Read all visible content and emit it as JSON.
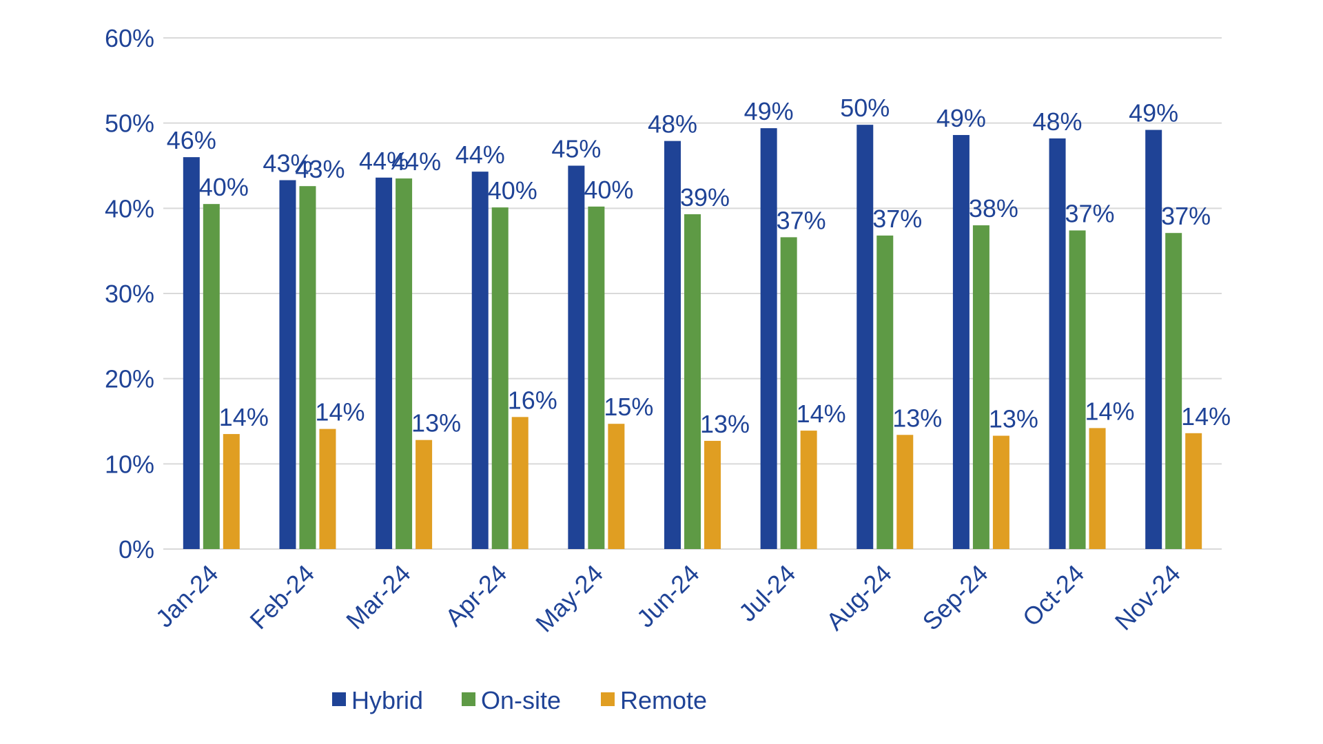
{
  "chart_data": {
    "type": "bar",
    "title": "",
    "xlabel": "",
    "ylabel": "",
    "categories": [
      "Jan-24",
      "Feb-24",
      "Mar-24",
      "Apr-24",
      "May-24",
      "Jun-24",
      "Jul-24",
      "Aug-24",
      "Sep-24",
      "Oct-24",
      "Nov-24"
    ],
    "series": [
      {
        "name": "Hybrid",
        "color": "#1F4396",
        "values": [
          46,
          43.3,
          43.6,
          44.3,
          45,
          47.9,
          49.4,
          49.8,
          48.6,
          48.2,
          49.2
        ],
        "labels": [
          "46%",
          "43%",
          "44%",
          "44%",
          "45%",
          "48%",
          "49%",
          "50%",
          "49%",
          "48%",
          "49%"
        ]
      },
      {
        "name": "On-site",
        "color": "#5E9A45",
        "values": [
          40.5,
          42.6,
          43.5,
          40.1,
          40.2,
          39.3,
          36.6,
          36.8,
          38,
          37.4,
          37.1
        ],
        "labels": [
          "40%",
          "43%",
          "44%",
          "40%",
          "40%",
          "39%",
          "37%",
          "37%",
          "38%",
          "37%",
          "37%"
        ]
      },
      {
        "name": "Remote",
        "color": "#E09E22",
        "values": [
          13.5,
          14.1,
          12.8,
          15.5,
          14.7,
          12.7,
          13.9,
          13.4,
          13.3,
          14.2,
          13.6
        ],
        "labels": [
          "14%",
          "14%",
          "13%",
          "16%",
          "15%",
          "13%",
          "14%",
          "13%",
          "13%",
          "14%",
          "14%"
        ]
      }
    ],
    "ylim": [
      0,
      60
    ],
    "y_ticks": [
      {
        "value": 0,
        "label": "0%"
      },
      {
        "value": 10,
        "label": "10%"
      },
      {
        "value": 20,
        "label": "20%"
      },
      {
        "value": 30,
        "label": "30%"
      },
      {
        "value": 40,
        "label": "40%"
      },
      {
        "value": 50,
        "label": "50%"
      },
      {
        "value": 60,
        "label": "60%"
      }
    ],
    "grid": true,
    "legend_position": "bottom",
    "text_color": "#1F4396",
    "grid_color": "#D9D9D9"
  }
}
